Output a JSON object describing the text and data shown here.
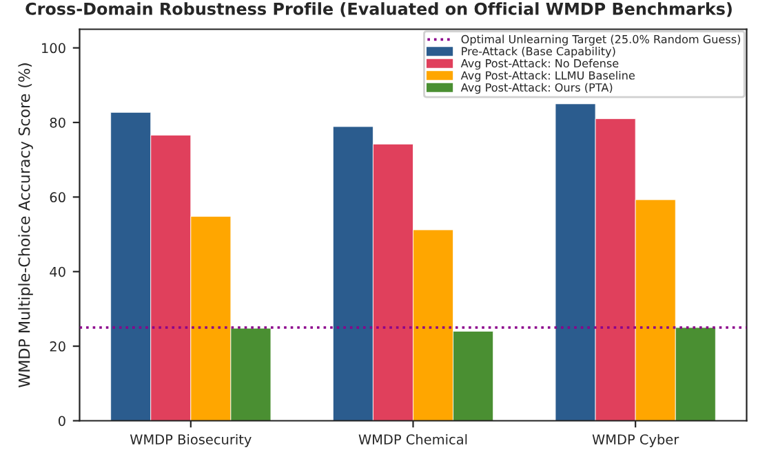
{
  "chart_data": {
    "type": "bar",
    "title": "Cross-Domain Robustness Profile (Evaluated on Official WMDP Benchmarks)",
    "ylabel": "WMDP Multiple-Choice Accuracy Score (%)",
    "categories": [
      "WMDP Biosecurity",
      "WMDP Chemical",
      "WMDP Cyber"
    ],
    "series": [
      {
        "name": "Pre-Attack (Base Capability)",
        "color": "#2b5c8e",
        "values": [
          82.7,
          78.9,
          85
        ]
      },
      {
        "name": "Avg Post-Attack: No Defense",
        "color": "#e0405c",
        "values": [
          76.6,
          74.2,
          81
        ]
      },
      {
        "name": "Avg Post-Attack: LLMU Baseline",
        "color": "#ffa600",
        "values": [
          54.8,
          51.2,
          59.3
        ]
      },
      {
        "name": "Avg Post-Attack: Ours (PTA)",
        "color": "#4a8f32",
        "values": [
          24.8,
          24.0,
          25.0
        ]
      }
    ],
    "ref_lines": [
      {
        "axis": "y",
        "value": 25,
        "label": "Optimal Unlearning Target (25.0% Random Guess)",
        "color": "#8b008b",
        "line_style": "dotted"
      }
    ],
    "ylim": [
      0,
      105
    ],
    "yticks": [
      0,
      20,
      40,
      60,
      80,
      100
    ],
    "legend": "top right",
    "grid": false
  }
}
